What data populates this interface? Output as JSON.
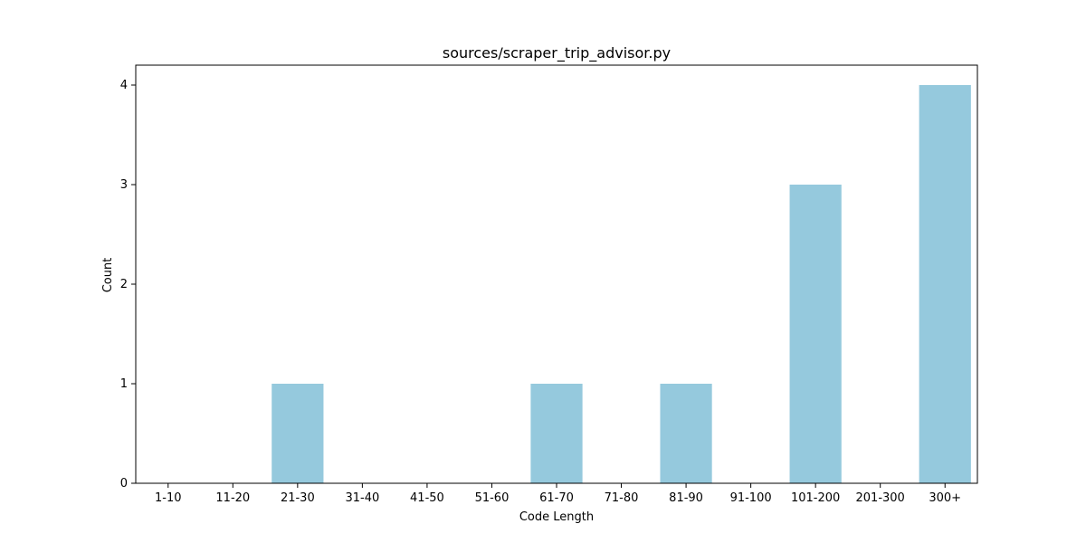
{
  "chart_data": {
    "type": "bar",
    "title": "sources/scraper_trip_advisor.py",
    "xlabel": "Code Length",
    "ylabel": "Count",
    "categories": [
      "1-10",
      "11-20",
      "21-30",
      "31-40",
      "41-50",
      "51-60",
      "61-70",
      "71-80",
      "81-90",
      "91-100",
      "101-200",
      "201-300",
      "300+"
    ],
    "values": [
      0,
      0,
      1,
      0,
      0,
      0,
      1,
      0,
      1,
      0,
      3,
      0,
      4
    ],
    "yticks": [
      0,
      1,
      2,
      3,
      4
    ],
    "ylim": [
      0,
      4.2
    ],
    "grid": false,
    "legend": false,
    "colors": {
      "bar": "#95c9dd"
    }
  }
}
